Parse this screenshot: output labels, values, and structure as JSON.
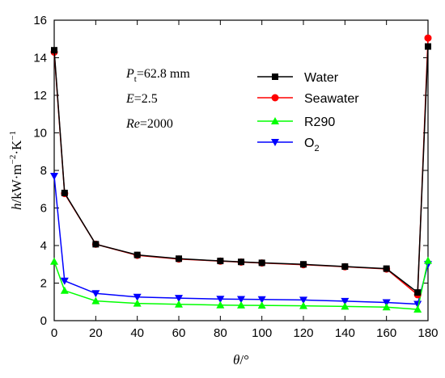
{
  "chart_data": {
    "type": "line",
    "xlabel": {
      "main": "θ",
      "unit": "/°"
    },
    "ylabel": {
      "main": "h",
      "unit": "/kW·m",
      "exp1": "−2",
      "mid": "·K",
      "exp2": "−1"
    },
    "xlim": [
      0,
      180
    ],
    "ylim": [
      0,
      16
    ],
    "xticks": [
      0,
      20,
      40,
      60,
      80,
      100,
      120,
      140,
      160,
      180
    ],
    "yticks": [
      0,
      2,
      4,
      6,
      8,
      10,
      12,
      14,
      16
    ],
    "grid": false,
    "legend_position": "top-right",
    "annotations": [
      {
        "main": "P",
        "sub": "t",
        "rest": "=62.8 mm"
      },
      {
        "main": "E",
        "sub": "",
        "rest": "=2.5"
      },
      {
        "main": "Re",
        "sub": "",
        "rest": "=2000"
      }
    ],
    "series": [
      {
        "name": "Water",
        "color": "#000000",
        "marker": "square",
        "x": [
          0,
          5,
          20,
          40,
          60,
          80,
          90,
          100,
          120,
          140,
          160,
          175,
          180
        ],
        "y": [
          14.4,
          6.8,
          4.07,
          3.5,
          3.3,
          3.18,
          3.13,
          3.08,
          3.0,
          2.88,
          2.77,
          1.5,
          14.6
        ]
      },
      {
        "name": "Seawater",
        "color": "#ff0000",
        "marker": "circle",
        "x": [
          0,
          5,
          20,
          40,
          60,
          80,
          90,
          100,
          120,
          140,
          160,
          175,
          180
        ],
        "y": [
          14.3,
          6.77,
          4.07,
          3.48,
          3.28,
          3.17,
          3.12,
          3.07,
          2.98,
          2.87,
          2.75,
          1.38,
          15.05
        ]
      },
      {
        "name": "R290",
        "color": "#00ff00",
        "marker": "triangle-up",
        "x": [
          0,
          5,
          20,
          40,
          60,
          80,
          90,
          100,
          120,
          140,
          160,
          175,
          180
        ],
        "y": [
          3.15,
          1.6,
          1.05,
          0.92,
          0.87,
          0.83,
          0.82,
          0.81,
          0.79,
          0.76,
          0.72,
          0.6,
          3.2
        ]
      },
      {
        "name": "O",
        "name_sub": "2",
        "color": "#0000ff",
        "marker": "triangle-down",
        "x": [
          0,
          5,
          20,
          40,
          60,
          80,
          90,
          100,
          120,
          140,
          160,
          175,
          180
        ],
        "y": [
          7.7,
          2.12,
          1.45,
          1.26,
          1.2,
          1.15,
          1.14,
          1.13,
          1.1,
          1.04,
          0.97,
          0.88,
          3.0
        ]
      }
    ]
  }
}
